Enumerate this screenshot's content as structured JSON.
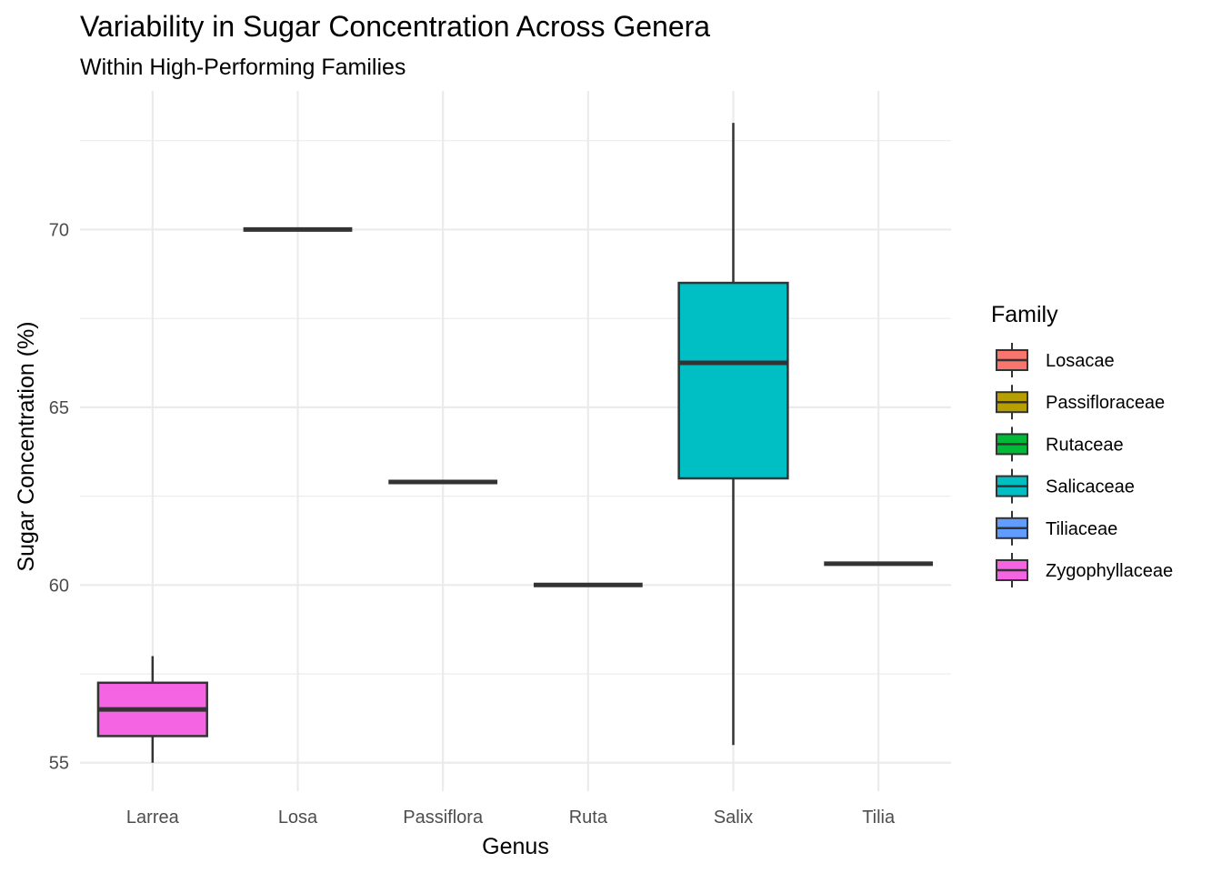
{
  "chart_data": {
    "type": "boxplot",
    "title": "Variability in Sugar Concentration Across Genera",
    "subtitle": "Within High-Performing Families",
    "xlabel": "Genus",
    "ylabel": "Sugar Concentration (%)",
    "categories": [
      "Larrea",
      "Losa",
      "Passiflora",
      "Ruta",
      "Salix",
      "Tilia"
    ],
    "ylim": [
      54.2,
      73.9
    ],
    "y_ticks": [
      55,
      60,
      65,
      70
    ],
    "grid": true,
    "legend": {
      "title": "Family",
      "position": "right",
      "entries": [
        {
          "label": "Losacae",
          "color": "#F8766D"
        },
        {
          "label": "Passifloraceae",
          "color": "#B79F00"
        },
        {
          "label": "Rutaceae",
          "color": "#00BA38"
        },
        {
          "label": "Salicaceae",
          "color": "#00BFC4"
        },
        {
          "label": "Tiliaceae",
          "color": "#619CFF"
        },
        {
          "label": "Zygophyllaceae",
          "color": "#F564E3"
        }
      ]
    },
    "boxes": [
      {
        "genus": "Larrea",
        "family": "Zygophyllaceae",
        "min": 55.0,
        "q1": 55.75,
        "median": 56.5,
        "q3": 57.25,
        "max": 58.0
      },
      {
        "genus": "Losa",
        "family": "Losacae",
        "min": 70.0,
        "q1": 70.0,
        "median": 70.0,
        "q3": 70.0,
        "max": 70.0
      },
      {
        "genus": "Passiflora",
        "family": "Passifloraceae",
        "min": 62.9,
        "q1": 62.9,
        "median": 62.9,
        "q3": 62.9,
        "max": 62.9
      },
      {
        "genus": "Ruta",
        "family": "Rutaceae",
        "min": 60.0,
        "q1": 60.0,
        "median": 60.0,
        "q3": 60.0,
        "max": 60.0
      },
      {
        "genus": "Salix",
        "family": "Salicaceae",
        "min": 55.5,
        "q1": 63.0,
        "median": 66.25,
        "q3": 68.5,
        "max": 73.0
      },
      {
        "genus": "Tilia",
        "family": "Tiliaceae",
        "min": 60.6,
        "q1": 60.6,
        "median": 60.6,
        "q3": 60.6,
        "max": 60.6
      }
    ]
  }
}
